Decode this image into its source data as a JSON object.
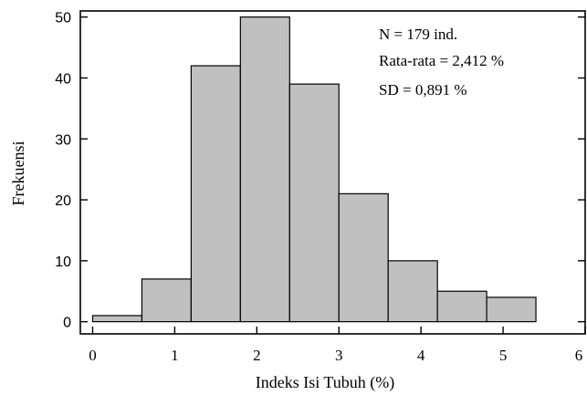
{
  "chart_data": {
    "type": "bar",
    "bins": [
      {
        "x0": 0.0,
        "x1": 0.6,
        "value": 1
      },
      {
        "x0": 0.6,
        "x1": 1.2,
        "value": 7
      },
      {
        "x0": 1.2,
        "x1": 1.8,
        "value": 42
      },
      {
        "x0": 1.8,
        "x1": 2.4,
        "value": 50
      },
      {
        "x0": 2.4,
        "x1": 3.0,
        "value": 39
      },
      {
        "x0": 3.0,
        "x1": 3.6,
        "value": 21
      },
      {
        "x0": 3.6,
        "x1": 4.2,
        "value": 10
      },
      {
        "x0": 4.2,
        "x1": 4.8,
        "value": 5
      },
      {
        "x0": 4.8,
        "x1": 5.4,
        "value": 4
      }
    ],
    "xlabel": "Indeks Isi Tubuh (%)",
    "ylabel": "Frekuensi",
    "xlim": [
      -0.15,
      6.0
    ],
    "ylim": [
      -2,
      51
    ],
    "xticks": [
      0,
      1,
      2,
      3,
      4,
      5,
      6
    ],
    "yticks": [
      0,
      10,
      20,
      30,
      40,
      50
    ],
    "xtick_labels": [
      "0",
      "1",
      "2",
      "3",
      "4",
      "5",
      "6"
    ],
    "ytick_labels": [
      "0",
      "10",
      "20",
      "30",
      "40",
      "50"
    ],
    "annotations": [
      "N = 179 ind.",
      "Rata-rata = 2,412 %",
      "SD = 0,891 %"
    ],
    "grid": false,
    "bar_color": "#c0c0c0"
  }
}
